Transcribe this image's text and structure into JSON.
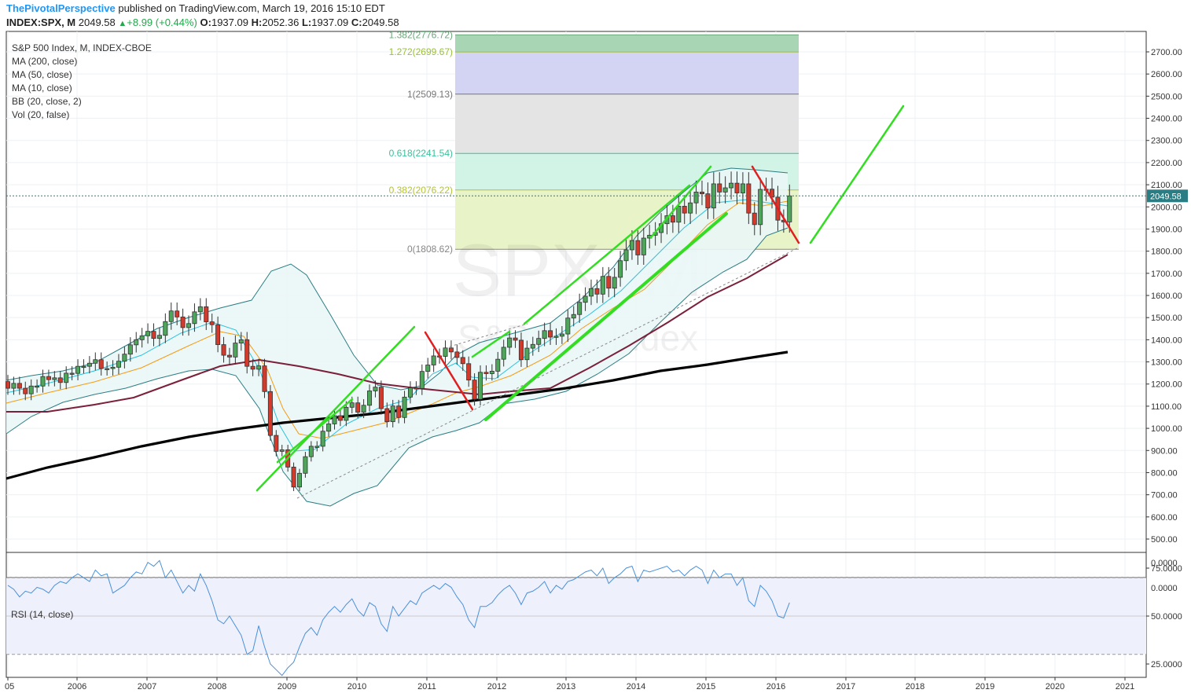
{
  "header": {
    "author": "ThePivotalPerspective",
    "published_text": " published on TradingView.com, March 19, 2016 15:10 EDT",
    "symbol": "INDEX:SPX, M",
    "last": "2049.58",
    "change_icon": "up-triangle",
    "change": "+8.99 (+0.44%)",
    "o_label": "O:",
    "o_value": "1937.09",
    "h_label": "H:",
    "h_value": "2052.36",
    "l_label": "L:",
    "l_value": "1937.09",
    "c_label": "C:",
    "c_value": "2049.58"
  },
  "legend": [
    "S&P 500 Index, M, INDEX-CBOE",
    "MA (200, close)",
    "MA (50, close)",
    "MA (10, close)",
    "BB (20, close, 2)",
    "Vol (20, false)"
  ],
  "watermark": {
    "symbol": "SPX, M",
    "name": "S&P 500 Index"
  },
  "price_tag": "2049.58",
  "vol_axis_label": "0.0000",
  "vol2_axis_label": "0.0000",
  "rsi_label": "RSI (14, close)",
  "colors": {
    "up": "#4ea65a",
    "down": "#d33a2c",
    "ma200": "#000000",
    "ma50": "#7b1f3a",
    "ma10": "#f39c12",
    "ma10b": "#29c3e0",
    "bb": "#2a7d83",
    "bb_fill": "#eaf6f6",
    "trend_green": "#33dd22",
    "trend_red": "#e02020",
    "rsi": "#4a90d9"
  },
  "chart_data": [
    {
      "type": "candlestick",
      "title": "S&P 500 Index, M, INDEX-CBOE",
      "timeframe": "monthly",
      "x_ticks": [
        "05",
        "2006",
        "2007",
        "2008",
        "2009",
        "2010",
        "2011",
        "2012",
        "2013",
        "2014",
        "2015",
        "2016",
        "2017",
        "2018",
        "2019",
        "2020",
        "2021"
      ],
      "y_ticks": [
        500,
        600,
        700,
        800,
        900,
        1000,
        1100,
        1200,
        1300,
        1400,
        1500,
        1600,
        1700,
        1800,
        1900,
        2000,
        2100,
        2200,
        2300,
        2400,
        2500,
        2600,
        2700
      ],
      "y_tick_labels": [
        "500.00",
        "600.00",
        "700.00",
        "800.00",
        "900.00",
        "1000.00",
        "1100.00",
        "1200.00",
        "1300.00",
        "1400.00",
        "1500.00",
        "1600.00",
        "1700.00",
        "1800.00",
        "1900.00",
        "2000.00",
        "2100.00",
        "2200.00",
        "2300.00",
        "2400.00",
        "2500.00",
        "2600.00",
        "2700.00"
      ],
      "last_price": 2049.58,
      "closes_approx": {
        "start": "2005-01",
        "values": [
          1181,
          1203,
          1181,
          1156,
          1191,
          1191,
          1234,
          1220,
          1228,
          1207,
          1249,
          1248,
          1280,
          1280,
          1294,
          1310,
          1270,
          1270,
          1276,
          1303,
          1335,
          1377,
          1400,
          1418,
          1438,
          1406,
          1420,
          1482,
          1530,
          1503,
          1455,
          1473,
          1526,
          1549,
          1481,
          1468,
          1378,
          1330,
          1322,
          1385,
          1400,
          1280,
          1267,
          1282,
          1166,
          968,
          896,
          903,
          825,
          735,
          797,
          872,
          919,
          919,
          987,
          1020,
          1057,
          1036,
          1095,
          1115,
          1073,
          1104,
          1169,
          1186,
          1089,
          1030,
          1101,
          1049,
          1141,
          1183,
          1180,
          1257,
          1286,
          1327,
          1325,
          1363,
          1345,
          1320,
          1292,
          1218,
          1131,
          1253,
          1247,
          1258,
          1312,
          1366,
          1408,
          1398,
          1310,
          1362,
          1379,
          1406,
          1441,
          1412,
          1416,
          1426,
          1498,
          1514,
          1569,
          1597,
          1631,
          1606,
          1686,
          1633,
          1682,
          1757,
          1806,
          1848,
          1783,
          1859,
          1872,
          1884,
          1924,
          1960,
          1931,
          2003,
          1972,
          2018,
          2067,
          2059,
          1995,
          2104,
          2067,
          2086,
          2107,
          2063,
          2104,
          1972,
          1920,
          2079,
          2080,
          2044,
          1940,
          1932,
          2049.58
        ]
      },
      "fibonacci": {
        "levels": [
          {
            "ratio": "0",
            "price": 1808.62,
            "label": "0(1808.62)"
          },
          {
            "ratio": "0.382",
            "price": 2076.22,
            "label": "0.382(2076.22)"
          },
          {
            "ratio": "0.618",
            "price": 2241.54,
            "label": "0.618(2241.54)"
          },
          {
            "ratio": "1",
            "price": 2509.13,
            "label": "1(2509.13)"
          },
          {
            "ratio": "1.272",
            "price": 2699.67,
            "label": "1.272(2699.67)"
          },
          {
            "ratio": "1.382",
            "price": 2776.72,
            "label": "1.382(2776.72)"
          }
        ]
      },
      "indicators": [
        "MA (200, close)",
        "MA (50, close)",
        "MA (10, close)",
        "BB (20, close, 2)"
      ],
      "grid": true
    },
    {
      "type": "line",
      "title": "RSI (14, close)",
      "y_ticks": [
        25,
        50,
        75
      ],
      "y_tick_labels": [
        "25.0000",
        "50.0000",
        "75.0000"
      ],
      "band": [
        30,
        70
      ],
      "values_approx": [
        66,
        64,
        60,
        63,
        62,
        65,
        64,
        62,
        66,
        68,
        67,
        70,
        72,
        70,
        68,
        74,
        71,
        72,
        62,
        64,
        66,
        70,
        73,
        72,
        78,
        76,
        79,
        70,
        74,
        68,
        62,
        66,
        63,
        72,
        66,
        58,
        48,
        46,
        50,
        45,
        40,
        30,
        32,
        45,
        34,
        25,
        22,
        19,
        23,
        26,
        34,
        41,
        44,
        40,
        48,
        52,
        55,
        52,
        56,
        59,
        53,
        50,
        57,
        55,
        46,
        42,
        55,
        50,
        54,
        58,
        56,
        62,
        64,
        66,
        64,
        67,
        65,
        60,
        56,
        48,
        44,
        55,
        55,
        57,
        61,
        64,
        66,
        62,
        56,
        62,
        63,
        65,
        68,
        62,
        66,
        64,
        68,
        69,
        71,
        73,
        74,
        71,
        75,
        67,
        70,
        72,
        75,
        76,
        68,
        74,
        73,
        74,
        75,
        76,
        73,
        74,
        71,
        74,
        76,
        74,
        67,
        74,
        70,
        72,
        72,
        66,
        70,
        58,
        55,
        66,
        63,
        58,
        50,
        49,
        57
      ]
    }
  ]
}
